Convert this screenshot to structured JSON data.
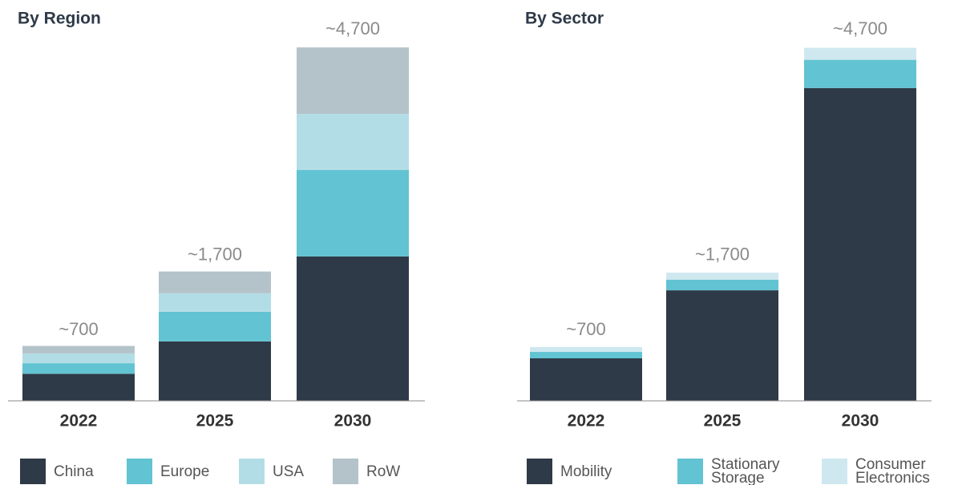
{
  "chart_data": [
    {
      "type": "stacked_bar",
      "title": "By Region",
      "categories": [
        "2022",
        "2025",
        "2030"
      ],
      "series": [
        {
          "name": "China",
          "color": "#2e3a48",
          "values": [
            360,
            790,
            1920
          ]
        },
        {
          "name": "Europe",
          "color": "#62c3d2",
          "values": [
            140,
            395,
            1150
          ]
        },
        {
          "name": "USA",
          "color": "#b3dde6",
          "values": [
            130,
            245,
            745
          ]
        },
        {
          "name": "RoW",
          "color": "#b4c3ca",
          "values": [
            100,
            290,
            885
          ]
        }
      ],
      "totals": {
        "values": [
          700,
          1700,
          4700
        ],
        "value_labels": [
          "~700",
          "~1,700",
          "~4,700"
        ]
      },
      "ylim": [
        0,
        5000
      ]
    },
    {
      "type": "stacked_bar",
      "title": "By Sector",
      "categories": [
        "2022",
        "2025",
        "2030"
      ],
      "series": [
        {
          "name": "Mobility",
          "color": "#2e3a48",
          "values": [
            565,
            1470,
            4160
          ]
        },
        {
          "name": "Stationary Storage",
          "color": "#62c3d2",
          "values": [
            85,
            140,
            375
          ]
        },
        {
          "name": "Consumer Electronics",
          "color": "#cfe8ef",
          "values": [
            65,
            95,
            160
          ]
        }
      ],
      "totals": {
        "values": [
          700,
          1700,
          4700
        ],
        "value_labels": [
          "~700",
          "~1,700",
          "~4,700"
        ]
      },
      "ylim": [
        0,
        5000
      ]
    }
  ]
}
